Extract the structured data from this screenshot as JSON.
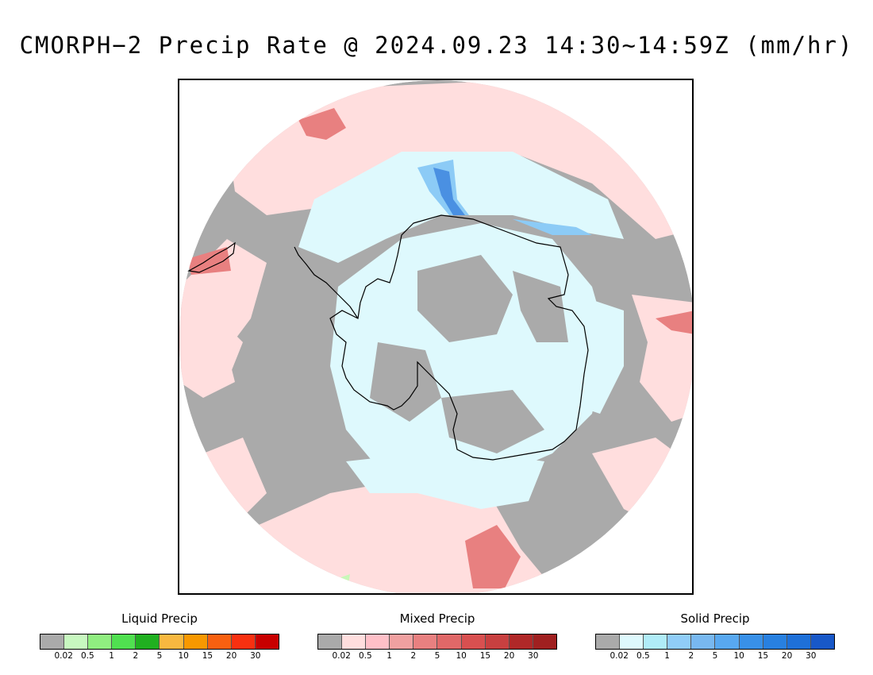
{
  "title": "CMORPH−2 Precip Rate @ 2024.09.23 14:30~14:59Z (mm/hr)",
  "map": {
    "projection": "south-polar-stereographic",
    "region": "Antarctica / Southern Ocean",
    "colors": {
      "no_precip": "#aaaaaa",
      "mixed_light": "#ffdede",
      "solid_light": "#def9fd",
      "mixed_heavy": "#e88080",
      "solid_medium": "#8ccbf6",
      "solid_heavy": "#4a90e2",
      "liquid_light": "#c8f8b8",
      "coastline": "#000000"
    }
  },
  "legends": [
    {
      "id": "liquid",
      "title": "Liquid Precip",
      "ticks": [
        "0.02",
        "0.5",
        "1",
        "2",
        "5",
        "10",
        "15",
        "20",
        "30"
      ],
      "colors": [
        "#aaaaaa",
        "#c8f8c0",
        "#90ee80",
        "#50e050",
        "#20b020",
        "#f8b840",
        "#f89800",
        "#f86010",
        "#f83010",
        "#c80000"
      ]
    },
    {
      "id": "mixed",
      "title": "Mixed Precip",
      "ticks": [
        "0.02",
        "0.5",
        "1",
        "2",
        "5",
        "10",
        "15",
        "20",
        "30"
      ],
      "colors": [
        "#aaaaaa",
        "#ffdede",
        "#ffc0c8",
        "#f0a0a0",
        "#e88080",
        "#e06868",
        "#d85050",
        "#c84040",
        "#b02828",
        "#a02020"
      ]
    },
    {
      "id": "solid",
      "title": "Solid Precip",
      "ticks": [
        "0.02",
        "0.5",
        "1",
        "2",
        "5",
        "10",
        "15",
        "20",
        "30"
      ],
      "colors": [
        "#aaaaaa",
        "#def9fd",
        "#b0ecf8",
        "#90cdf8",
        "#78b8f0",
        "#58a8f0",
        "#3890e8",
        "#2880e0",
        "#1e70d8",
        "#1858c8"
      ]
    }
  ]
}
